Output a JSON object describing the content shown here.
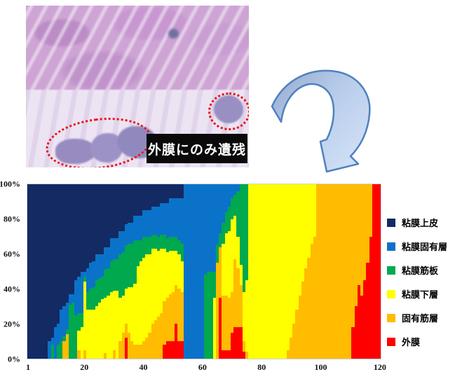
{
  "figure": {
    "histology": {
      "annotation_label": "外膜にのみ遺残",
      "outline_color": "#ea1216"
    }
  },
  "chart_data": {
    "type": "bar",
    "subtype": "100-percent-stacked",
    "title": "",
    "xlabel": "",
    "ylabel": "",
    "x_axis": {
      "min": 1,
      "max": 120,
      "ticks": [
        1,
        20,
        40,
        60,
        80,
        100,
        120
      ]
    },
    "y_axis": {
      "range": [
        0,
        100
      ],
      "ticks": [
        "100%",
        "80%",
        "60%",
        "40%",
        "20%",
        "0%"
      ]
    },
    "grid": false,
    "legend_position": "right",
    "series": [
      "粘膜上皮",
      "粘膜固有層",
      "粘膜筋板",
      "粘膜下層",
      "固有筋層",
      "外膜"
    ],
    "colors": [
      "#132a63",
      "#0b72c9",
      "#00a84e",
      "#ffff00",
      "#ffbc00",
      "#fe0000"
    ],
    "bars": [
      [
        100,
        0,
        0,
        0,
        0,
        0
      ],
      [
        100,
        0,
        0,
        0,
        0,
        0
      ],
      [
        100,
        0,
        0,
        0,
        0,
        0
      ],
      [
        100,
        0,
        0,
        0,
        0,
        0
      ],
      [
        100,
        0,
        0,
        0,
        0,
        0
      ],
      [
        100,
        0,
        0,
        0,
        0,
        0
      ],
      [
        100,
        0,
        0,
        0,
        0,
        0
      ],
      [
        90,
        10,
        0,
        0,
        0,
        0
      ],
      [
        88,
        4,
        8,
        0,
        0,
        0
      ],
      [
        82,
        18,
        0,
        0,
        0,
        0
      ],
      [
        80,
        12,
        8,
        0,
        0,
        0
      ],
      [
        72,
        18,
        10,
        0,
        0,
        0
      ],
      [
        70,
        17,
        3,
        0,
        10,
        0
      ],
      [
        68,
        15,
        3,
        0,
        14,
        0
      ],
      [
        63,
        6,
        31,
        0,
        0,
        0
      ],
      [
        63,
        5,
        32,
        0,
        0,
        0
      ],
      [
        55,
        20,
        25,
        0,
        0,
        0
      ],
      [
        53,
        21,
        10,
        11,
        5,
        0
      ],
      [
        50,
        24,
        8,
        18,
        0,
        0
      ],
      [
        50,
        3,
        3,
        39,
        5,
        0
      ],
      [
        48,
        14,
        10,
        28,
        0,
        0
      ],
      [
        45,
        15,
        12,
        28,
        0,
        0
      ],
      [
        44,
        15,
        13,
        28,
        0,
        0
      ],
      [
        40,
        15,
        15,
        30,
        0,
        0
      ],
      [
        40,
        14,
        14,
        32,
        0,
        0
      ],
      [
        40,
        13,
        13,
        34,
        0,
        0
      ],
      [
        36,
        13,
        16,
        32,
        3,
        0
      ],
      [
        36,
        12,
        16,
        36,
        0,
        0
      ],
      [
        31,
        13,
        18,
        38,
        0,
        0
      ],
      [
        31,
        12,
        18,
        34,
        5,
        0
      ],
      [
        31,
        12,
        18,
        39,
        0,
        0
      ],
      [
        27,
        13,
        25,
        25,
        10,
        0
      ],
      [
        27,
        12,
        25,
        21,
        15,
        0
      ],
      [
        23,
        12,
        25,
        20,
        8,
        12
      ],
      [
        22,
        12,
        25,
        26,
        15,
        0
      ],
      [
        22,
        12,
        25,
        31,
        10,
        0
      ],
      [
        18,
        14,
        25,
        35,
        8,
        0
      ],
      [
        18,
        14,
        15,
        45,
        8,
        0
      ],
      [
        18,
        14,
        12,
        48,
        8,
        0
      ],
      [
        15,
        15,
        12,
        48,
        10,
        0
      ],
      [
        15,
        15,
        10,
        48,
        12,
        0
      ],
      [
        15,
        15,
        10,
        45,
        15,
        0
      ],
      [
        13,
        16,
        8,
        43,
        20,
        0
      ],
      [
        13,
        16,
        8,
        41,
        22,
        0
      ],
      [
        13,
        17,
        8,
        38,
        24,
        0
      ],
      [
        11,
        18,
        8,
        37,
        26,
        0
      ],
      [
        11,
        18,
        8,
        30,
        25,
        8
      ],
      [
        11,
        20,
        8,
        26,
        25,
        10
      ],
      [
        8,
        22,
        8,
        25,
        27,
        10
      ],
      [
        8,
        22,
        8,
        24,
        28,
        10
      ],
      [
        8,
        22,
        8,
        20,
        22,
        20
      ],
      [
        8,
        24,
        8,
        20,
        30,
        10
      ],
      [
        8,
        26,
        10,
        18,
        28,
        10
      ],
      [
        0,
        100,
        0,
        0,
        0,
        0
      ],
      [
        0,
        100,
        0,
        0,
        0,
        0
      ],
      [
        0,
        100,
        0,
        0,
        0,
        0
      ],
      [
        0,
        100,
        0,
        0,
        0,
        0
      ],
      [
        0,
        100,
        0,
        0,
        0,
        0
      ],
      [
        0,
        100,
        0,
        0,
        0,
        0
      ],
      [
        0,
        100,
        0,
        0,
        0,
        0
      ],
      [
        0,
        52,
        48,
        0,
        0,
        0
      ],
      [
        0,
        50,
        50,
        0,
        0,
        0
      ],
      [
        0,
        50,
        50,
        0,
        0,
        0
      ],
      [
        0,
        50,
        15,
        35,
        0,
        0
      ],
      [
        0,
        35,
        10,
        0,
        55,
        0
      ],
      [
        0,
        28,
        8,
        0,
        29,
        35
      ],
      [
        0,
        22,
        12,
        30,
        31,
        5
      ],
      [
        0,
        16,
        12,
        36,
        31,
        5
      ],
      [
        0,
        13,
        14,
        38,
        30,
        5
      ],
      [
        0,
        8,
        12,
        42,
        23,
        15
      ],
      [
        0,
        6,
        12,
        25,
        39,
        18
      ],
      [
        0,
        4,
        26,
        18,
        34,
        18
      ],
      [
        0,
        0,
        46,
        12,
        24,
        18
      ],
      [
        0,
        0,
        62,
        28,
        6,
        4
      ],
      [
        0,
        0,
        55,
        41,
        4,
        0
      ],
      [
        0,
        0,
        0,
        100,
        0,
        0
      ],
      [
        0,
        0,
        0,
        100,
        0,
        0
      ],
      [
        0,
        0,
        0,
        100,
        0,
        0
      ],
      [
        0,
        0,
        0,
        100,
        0,
        0
      ],
      [
        0,
        0,
        0,
        100,
        0,
        0
      ],
      [
        0,
        0,
        0,
        100,
        0,
        0
      ],
      [
        0,
        0,
        0,
        100,
        0,
        0
      ],
      [
        0,
        0,
        0,
        100,
        0,
        0
      ],
      [
        0,
        0,
        0,
        100,
        0,
        0
      ],
      [
        0,
        0,
        0,
        100,
        0,
        0
      ],
      [
        0,
        0,
        0,
        100,
        0,
        0
      ],
      [
        0,
        0,
        0,
        100,
        0,
        0
      ],
      [
        0,
        0,
        0,
        100,
        0,
        0
      ],
      [
        0,
        0,
        0,
        95,
        5,
        0
      ],
      [
        0,
        0,
        0,
        88,
        12,
        0
      ],
      [
        0,
        0,
        0,
        80,
        20,
        0
      ],
      [
        0,
        0,
        0,
        72,
        28,
        0
      ],
      [
        0,
        0,
        0,
        64,
        36,
        0
      ],
      [
        0,
        0,
        0,
        56,
        44,
        0
      ],
      [
        0,
        0,
        0,
        48,
        52,
        0
      ],
      [
        0,
        0,
        0,
        42,
        58,
        0
      ],
      [
        0,
        0,
        0,
        34,
        66,
        0
      ],
      [
        0,
        0,
        0,
        30,
        70,
        0
      ],
      [
        0,
        0,
        0,
        0,
        100,
        0
      ],
      [
        0,
        0,
        0,
        0,
        100,
        0
      ],
      [
        0,
        0,
        0,
        0,
        100,
        0
      ],
      [
        0,
        0,
        0,
        0,
        100,
        0
      ],
      [
        0,
        0,
        0,
        0,
        100,
        0
      ],
      [
        0,
        0,
        0,
        0,
        100,
        0
      ],
      [
        0,
        0,
        0,
        0,
        100,
        0
      ],
      [
        0,
        0,
        0,
        0,
        100,
        0
      ],
      [
        0,
        0,
        0,
        0,
        100,
        0
      ],
      [
        0,
        0,
        0,
        0,
        100,
        0
      ],
      [
        0,
        0,
        0,
        0,
        100,
        0
      ],
      [
        0,
        0,
        0,
        0,
        100,
        0
      ],
      [
        0,
        0,
        0,
        0,
        82,
        18
      ],
      [
        0,
        0,
        0,
        0,
        70,
        30
      ],
      [
        0,
        0,
        0,
        0,
        58,
        42
      ],
      [
        0,
        0,
        0,
        0,
        64,
        36
      ],
      [
        0,
        0,
        0,
        0,
        55,
        45
      ],
      [
        0,
        0,
        0,
        0,
        45,
        55
      ],
      [
        0,
        0,
        0,
        0,
        30,
        70
      ],
      [
        0,
        0,
        0,
        0,
        0,
        100
      ],
      [
        0,
        0,
        0,
        0,
        0,
        100
      ],
      [
        0,
        0,
        0,
        0,
        0,
        100
      ]
    ]
  }
}
